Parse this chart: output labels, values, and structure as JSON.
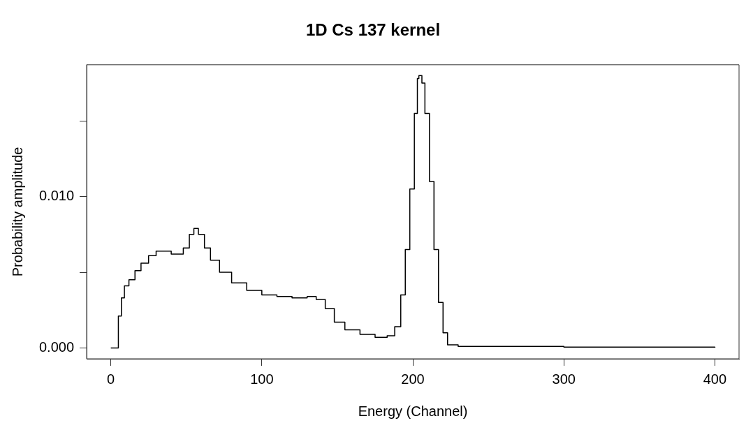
{
  "chart_data": {
    "type": "step",
    "title": "1D Cs 137 kernel",
    "xlabel": "Energy (Channel)",
    "ylabel": "Probability amplitude",
    "x": [
      0,
      4,
      5,
      7,
      9,
      12,
      16,
      20,
      25,
      30,
      35,
      40,
      45,
      48,
      52,
      55,
      58,
      62,
      66,
      72,
      80,
      90,
      100,
      110,
      120,
      130,
      136,
      142,
      148,
      155,
      165,
      175,
      183,
      188,
      192,
      195,
      198,
      201,
      203,
      204,
      206,
      208,
      211,
      214,
      217,
      220,
      223,
      230,
      300,
      400
    ],
    "series": [
      {
        "color": "#000000",
        "values": [
          0,
          0,
          0.0021,
          0.0033,
          0.0041,
          0.0045,
          0.0051,
          0.0056,
          0.0061,
          0.0064,
          0.0064,
          0.0062,
          0.0062,
          0.0066,
          0.0075,
          0.0079,
          0.0075,
          0.0066,
          0.0058,
          0.005,
          0.0043,
          0.0038,
          0.0035,
          0.0034,
          0.0033,
          0.0034,
          0.0032,
          0.0026,
          0.0017,
          0.0012,
          0.0009,
          0.0007,
          0.0008,
          0.0014,
          0.0035,
          0.0065,
          0.0105,
          0.0155,
          0.0178,
          0.018,
          0.0175,
          0.0155,
          0.011,
          0.0065,
          0.003,
          0.001,
          0.0002,
          0.0001,
          5e-05,
          2e-05
        ]
      }
    ],
    "xlim": [
      -16,
      416
    ],
    "xticks": [
      0,
      100,
      200,
      300,
      400
    ],
    "ylim": [
      -0.00072,
      0.01871
    ],
    "yticks": [
      {
        "value": 0,
        "label": "0.000"
      },
      {
        "value": 0.005,
        "label": null
      },
      {
        "value": 0.01,
        "label": "0.010"
      },
      {
        "value": 0.015,
        "label": null
      }
    ],
    "marker": "none",
    "line_style": "solid"
  }
}
